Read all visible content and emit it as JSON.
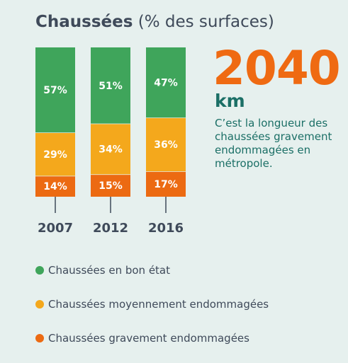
{
  "title": {
    "strong": "Chaussées",
    "light": "(% des surfaces)"
  },
  "colors": {
    "good": "#3fa55b",
    "medium": "#f4a81c",
    "bad": "#ec6a12",
    "axis": "#3f4a5a"
  },
  "chart_data": {
    "type": "bar",
    "stacked": true,
    "categories": [
      "2007",
      "2012",
      "2016"
    ],
    "series": [
      {
        "name": "Chaussées gravement endommagées",
        "values": [
          14,
          15,
          17
        ],
        "labels": [
          "14%",
          "15%",
          "17%"
        ],
        "color": "#ec6a12"
      },
      {
        "name": "Chaussées moyennement endommagées",
        "values": [
          29,
          34,
          36
        ],
        "labels": [
          "29%",
          "34%",
          "36%"
        ],
        "color": "#f4a81c"
      },
      {
        "name": "Chaussées en bon état",
        "values": [
          57,
          51,
          47
        ],
        "labels": [
          "57%",
          "51%",
          "47%"
        ],
        "color": "#3fa55b"
      }
    ],
    "ylim": [
      0,
      100
    ],
    "legend_position": "bottom-left"
  },
  "highlight": {
    "value": "2040",
    "unit": "km",
    "description": "C’est la longueur des chaussées gravement endommagées en métropole."
  },
  "legend": [
    {
      "label": "Chaussées en bon état",
      "color": "#3fa55b"
    },
    {
      "label": "Chaussées moyennement endommagées",
      "color": "#f4a81c"
    },
    {
      "label": "Chaussées gravement endommagées",
      "color": "#ec6a12"
    }
  ]
}
